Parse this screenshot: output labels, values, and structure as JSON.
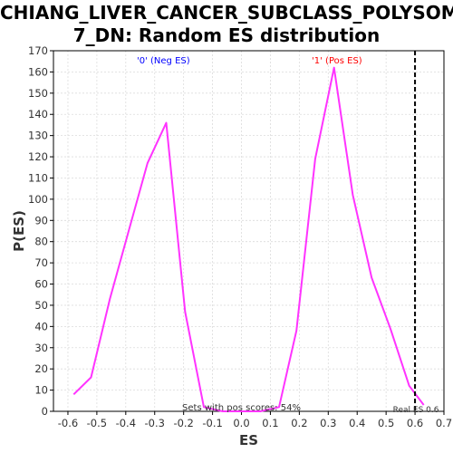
{
  "chart_data": {
    "type": "line",
    "title_line1": "CHIANG_LIVER_CANCER_SUBCLASS_POLYSOMY",
    "title_line2": "7_DN: Random ES distribution",
    "xlabel": "ES",
    "ylabel": "P(ES)",
    "xlim": [
      -0.65,
      0.7
    ],
    "ylim": [
      0,
      170
    ],
    "xticks": [
      "-0.6",
      "-0.5",
      "-0.4",
      "-0.3",
      "-0.2",
      "-0.1",
      "0.0",
      "0.1",
      "0.2",
      "0.3",
      "0.4",
      "0.5",
      "0.6",
      "0.7"
    ],
    "yticks": [
      "0",
      "10",
      "20",
      "30",
      "40",
      "50",
      "60",
      "70",
      "80",
      "90",
      "100",
      "110",
      "120",
      "130",
      "140",
      "150",
      "160",
      "170"
    ],
    "grid": true,
    "series": [
      {
        "color": "#ff33ff",
        "x": [
          -0.58,
          -0.52,
          -0.455,
          -0.39,
          -0.325,
          -0.26,
          -0.195,
          -0.13,
          -0.065,
          0.0,
          0.065,
          0.13,
          0.19,
          0.255,
          0.32,
          0.385,
          0.45,
          0.515,
          0.58,
          0.63
        ],
        "y": [
          8,
          16,
          53,
          85,
          117,
          136,
          47,
          2,
          0,
          0,
          0,
          2,
          38,
          119,
          162,
          102,
          63,
          39,
          12,
          3
        ]
      }
    ],
    "annotations": {
      "neg_label": "'0' (Neg ES)",
      "neg_color": "#0000ff",
      "pos_label": "'1' (Pos ES)",
      "pos_color": "#ff0000",
      "sets_text": "Sets with pos scores: 54%",
      "real_es_text": "Real ES 0.6",
      "real_es": 0.6
    }
  }
}
